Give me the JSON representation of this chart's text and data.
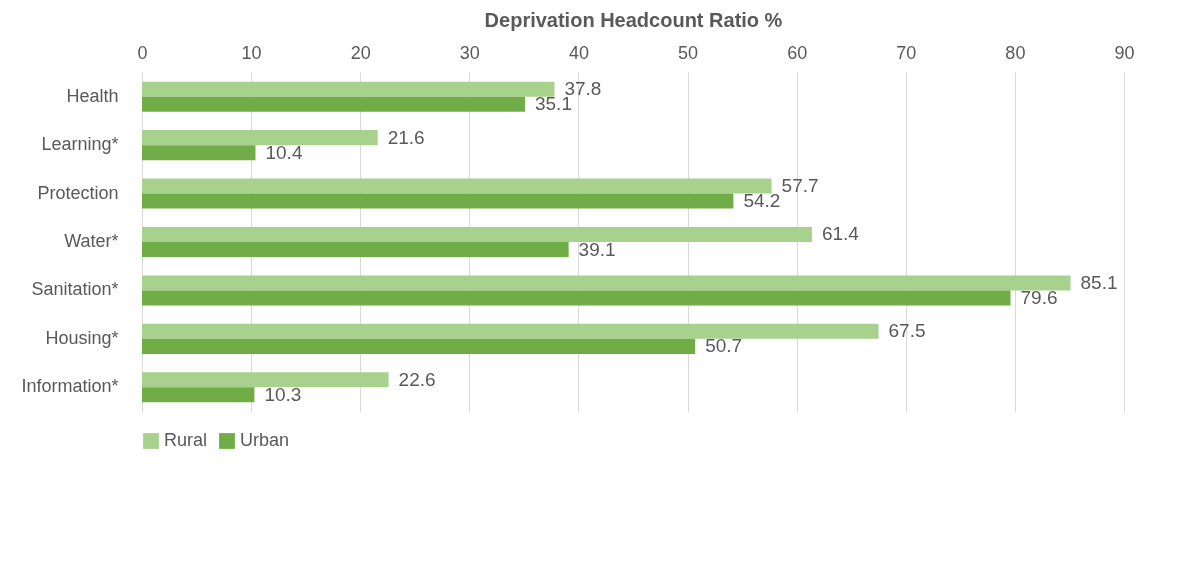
{
  "chart_data": {
    "type": "bar",
    "orientation": "horizontal",
    "xlabel": "Deprivation Headcount Ratio %",
    "categories": [
      "Health",
      "Learning*",
      "Protection",
      "Water*",
      "Sanitation*",
      "Housing*",
      "Information*"
    ],
    "series": [
      {
        "name": "Rural",
        "color": "#a9d18e",
        "values": [
          37.8,
          21.6,
          57.7,
          61.4,
          85.1,
          67.5,
          22.6
        ]
      },
      {
        "name": "Urban",
        "color": "#70ad47",
        "values": [
          35.1,
          10.4,
          54.2,
          39.1,
          79.6,
          50.7,
          10.3
        ]
      }
    ],
    "xlim": [
      0,
      90
    ],
    "xticks": [
      0,
      10,
      20,
      30,
      40,
      50,
      60,
      70,
      80,
      90
    ],
    "grid": "x",
    "legend": "bottom",
    "data_labels": true
  }
}
